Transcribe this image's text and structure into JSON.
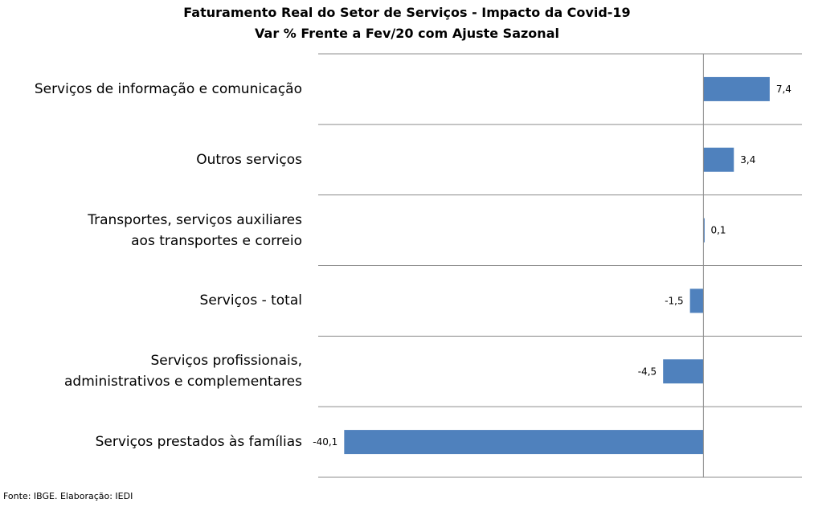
{
  "chart_data": {
    "type": "bar",
    "orientation": "horizontal",
    "title": "Faturamento  Real do Setor de Serviços - Impacto da Covid-19",
    "subtitle": "Var % Frente a Fev/20 com Ajuste Sazonal",
    "categories": [
      "Serviços de informação e comunicação",
      "Outros serviços",
      "Transportes, serviços auxiliares aos transportes e correio",
      "Serviços - total",
      "Serviços profissionais, administrativos e complementares",
      "Serviços prestados às famílias"
    ],
    "category_lines": [
      [
        "Serviços de informação e comunicação"
      ],
      [
        "Outros serviços"
      ],
      [
        "Transportes, serviços auxiliares",
        "aos transportes e correio"
      ],
      [
        "Serviços - total"
      ],
      [
        "Serviços profissionais,",
        "administrativos e complementares"
      ],
      [
        "Serviços prestados às famílias"
      ]
    ],
    "values": [
      7.4,
      3.4,
      0.1,
      -1.5,
      -4.5,
      -40.1
    ],
    "data_labels": [
      "7,4",
      "3,4",
      "0,1",
      "-1,5",
      "-4,5",
      "-40,1"
    ],
    "xlim": [
      -43,
      11
    ],
    "bar_color": "#4f81bd",
    "gridlines": "horizontal separators",
    "legend": "none"
  },
  "source": "Fonte: IBGE. Elaboração: IEDI"
}
